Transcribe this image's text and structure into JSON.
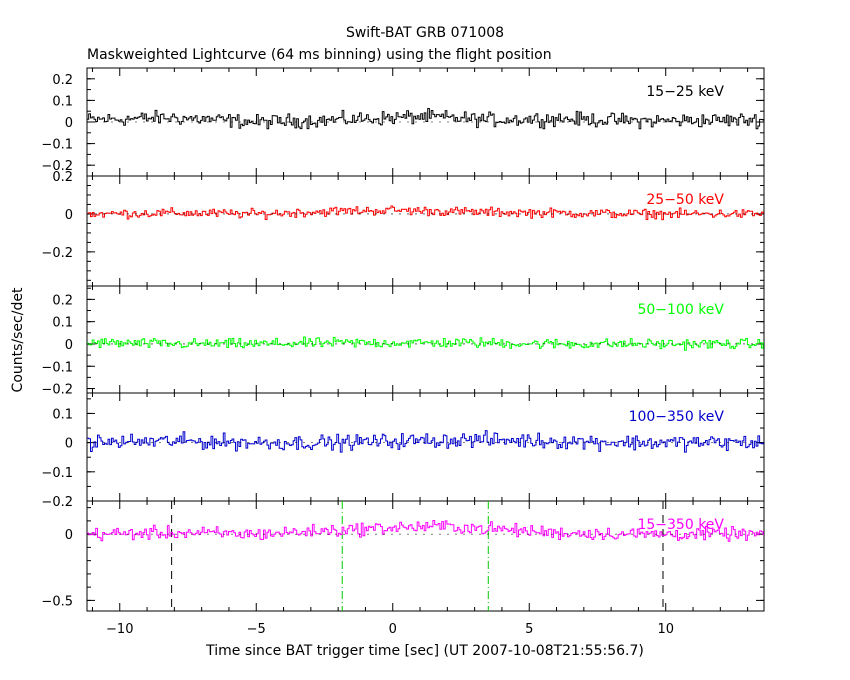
{
  "chart_data": {
    "type": "line",
    "title": "Swift-BAT GRB 071008",
    "subtitle": "Maskweighted Lightcurve (64 ms binning) using the flight position",
    "xlabel": "Time since BAT trigger time [sec] (UT 2007-10-08T21:55:56.7)",
    "ylabel": "Counts/sec/det",
    "xlim": [
      -11.2,
      13.6
    ],
    "x_ticks": [
      -10,
      -5,
      0,
      5,
      10
    ],
    "x_tick_labels": [
      "−10",
      "−5",
      "0",
      "5",
      "10"
    ],
    "grid": false,
    "panels": [
      {
        "name": "15−25 keV",
        "color": "#000000",
        "ylim": [
          -0.25,
          0.25
        ],
        "y_ticks": [
          -0.2,
          -0.1,
          0,
          0.1,
          0.2
        ],
        "y_tick_labels": [
          "−0.2",
          "−0.1",
          "0",
          "0.1",
          "0.2"
        ],
        "noise_amplitude": 0.02,
        "x": [
          -11.2,
          -8.1,
          -5,
          -2,
          1.1,
          3.5,
          6,
          9,
          13.6
        ],
        "values": [
          0.01,
          0.02,
          0.0,
          0.01,
          0.025,
          0.01,
          0.015,
          0.005,
          0.01
        ]
      },
      {
        "name": "25−50 keV",
        "color": "#ff0000",
        "ylim": [
          -0.38,
          0.2
        ],
        "y_ticks": [
          -0.2,
          0,
          0.2
        ],
        "y_tick_labels": [
          "−0.2",
          "0",
          "0.2"
        ],
        "noise_amplitude": 0.015,
        "x": [
          -11.2,
          -8,
          -5,
          -2,
          0,
          3,
          6,
          9,
          13.6
        ],
        "values": [
          0.0,
          0.005,
          0.0,
          0.015,
          0.02,
          0.01,
          0.005,
          0.0,
          0.0
        ]
      },
      {
        "name": "50−100 keV",
        "color": "#00ff00",
        "ylim": [
          -0.22,
          0.26
        ],
        "y_ticks": [
          -0.2,
          -0.1,
          0,
          0.1,
          0.2
        ],
        "y_tick_labels": [
          "−0.2",
          "−0.1",
          "0",
          "0.1",
          "0.2"
        ],
        "noise_amplitude": 0.014,
        "x": [
          -11.2,
          -8,
          -5,
          -2,
          0,
          3,
          6,
          9,
          13.6
        ],
        "values": [
          0.005,
          0.0,
          0.0,
          0.005,
          0.005,
          0.005,
          0.0,
          0.0,
          0.0
        ]
      },
      {
        "name": "100−350 keV",
        "color": "#0000cc",
        "ylim": [
          -0.2,
          0.17
        ],
        "y_ticks": [
          -0.2,
          -0.1,
          0,
          0.1
        ],
        "y_tick_labels": [
          "−0.2",
          "−0.1",
          "0",
          "0.1"
        ],
        "noise_amplitude": 0.016,
        "x": [
          -11.2,
          -8,
          -5,
          -2,
          0,
          3,
          6,
          9,
          13.6
        ],
        "values": [
          0.0,
          0.005,
          0.0,
          0.0,
          0.005,
          0.01,
          0.005,
          0.0,
          0.0
        ]
      },
      {
        "name": "15−350 keV",
        "color": "#ff00ff",
        "ylim": [
          -0.58,
          0.25
        ],
        "y_ticks": [
          -0.5,
          0
        ],
        "y_tick_labels": [
          "−0.5",
          "0"
        ],
        "noise_amplitude": 0.03,
        "x": [
          -11.2,
          -8,
          -5,
          -2,
          0,
          2,
          3.5,
          6,
          9,
          13.6
        ],
        "values": [
          0.0,
          0.01,
          0.0,
          0.03,
          0.05,
          0.06,
          0.04,
          0.01,
          0.0,
          0.0
        ],
        "dashed_lines": [
          {
            "x": -8.1,
            "color": "#000000",
            "style": "dash"
          },
          {
            "x": -1.85,
            "color": "#00cc00",
            "style": "dashdot"
          },
          {
            "x": 3.5,
            "color": "#00cc00",
            "style": "dashdot"
          },
          {
            "x": 9.9,
            "color": "#000000",
            "style": "dash"
          }
        ]
      }
    ]
  }
}
